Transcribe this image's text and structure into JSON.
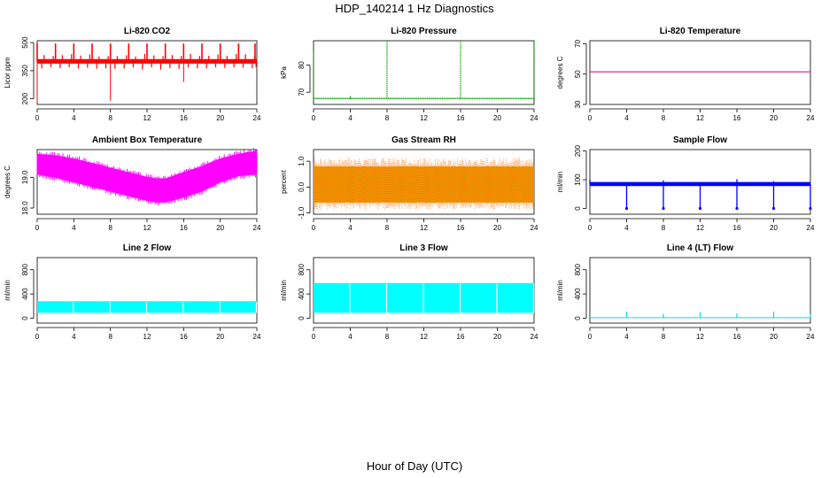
{
  "figure": {
    "title": "HDP_140214  1 Hz Diagnostics",
    "xlabel": "Hour of Day (UTC)"
  },
  "chart_data": [
    {
      "type": "line",
      "title": "Li-820 CO2",
      "ylabel": "Licor ppm",
      "color": "#ff0000",
      "x_ticks": [
        "0",
        "4",
        "8",
        "12",
        "16",
        "20",
        "24"
      ],
      "y_ticks": [
        "200",
        "350",
        "500"
      ],
      "y_tick_values": [
        200,
        350,
        500
      ],
      "xlim": [
        0,
        24
      ],
      "ylim": [
        170,
        510
      ],
      "baseline": 400,
      "band": [
        388,
        412
      ],
      "spikes_up": [
        0,
        2,
        4,
        6,
        8,
        10,
        12,
        14,
        16,
        18,
        20,
        22,
        23.8
      ],
      "spikes_up_value": 495,
      "spikes_down": [
        [
          0,
          180
        ],
        [
          8,
          190
        ],
        [
          16,
          290
        ],
        [
          23.9,
          370
        ]
      ]
    },
    {
      "type": "line",
      "title": "Li-820 Pressure",
      "ylabel": "kPa",
      "color": "#00b000",
      "x_ticks": [
        "0",
        "4",
        "8",
        "12",
        "16",
        "20",
        "24"
      ],
      "y_ticks": [
        "70",
        "80"
      ],
      "y_tick_values": [
        70,
        80
      ],
      "xlim": [
        0,
        24
      ],
      "ylim": [
        65.5,
        89
      ],
      "baseline": 67.7,
      "spikes_up": [
        [
          0,
          85
        ],
        [
          8,
          88.8
        ],
        [
          16,
          88.8
        ],
        [
          24,
          88.8
        ]
      ]
    },
    {
      "type": "line",
      "title": "Li-820 Temperature",
      "ylabel": "degrees C",
      "color": "#cc0066",
      "x_ticks": [
        "0",
        "4",
        "8",
        "12",
        "16",
        "20",
        "24"
      ],
      "y_ticks": [
        "30",
        "50",
        "70"
      ],
      "y_tick_values": [
        30,
        50,
        70
      ],
      "xlim": [
        0,
        24
      ],
      "ylim": [
        30,
        72
      ],
      "baseline": 51.5
    },
    {
      "type": "area",
      "title": "Ambient Box Temperature",
      "ylabel": "degrees C",
      "color": "#ff00ff",
      "x_ticks": [
        "0",
        "4",
        "8",
        "12",
        "16",
        "20",
        "24"
      ],
      "y_ticks": [
        "18.0",
        "19.0"
      ],
      "y_tick_values": [
        18.0,
        19.0
      ],
      "xlim": [
        0,
        24
      ],
      "ylim": [
        17.8,
        19.9
      ],
      "x": [
        0,
        2,
        4,
        6,
        8,
        10,
        12,
        13,
        14,
        16,
        18,
        20,
        22,
        24
      ],
      "upper": [
        19.75,
        19.7,
        19.6,
        19.45,
        19.3,
        19.15,
        19.0,
        18.95,
        18.95,
        19.15,
        19.35,
        19.6,
        19.75,
        19.85
      ],
      "lower": [
        19.1,
        19.0,
        18.85,
        18.7,
        18.55,
        18.4,
        18.25,
        18.2,
        18.2,
        18.35,
        18.55,
        18.85,
        19.05,
        19.1
      ]
    },
    {
      "type": "area",
      "title": "Gas Stream RH",
      "ylabel": "percent",
      "color": "#e8a000",
      "color2": "#ff6600",
      "x_ticks": [
        "0",
        "4",
        "8",
        "12",
        "16",
        "20",
        "24"
      ],
      "y_ticks": [
        "-1.0",
        "0.0",
        "1.0"
      ],
      "y_tick_values": [
        -1.0,
        0.0,
        1.0
      ],
      "xlim": [
        0,
        24
      ],
      "ylim": [
        -1.05,
        1.45
      ],
      "band": [
        -0.85,
        1.1
      ]
    },
    {
      "type": "line",
      "title": "Sample Flow",
      "ylabel": "ml/min",
      "color": "#0000ff",
      "x_ticks": [
        "0",
        "4",
        "8",
        "12",
        "16",
        "20",
        "24"
      ],
      "y_ticks": [
        "0",
        "100",
        "200"
      ],
      "y_tick_values": [
        0,
        100,
        200
      ],
      "xlim": [
        0,
        24
      ],
      "ylim": [
        -20,
        205
      ],
      "band": [
        78,
        92
      ],
      "dips": [
        4,
        8,
        12,
        16,
        20,
        24
      ],
      "dip_value": 0,
      "peaks": [
        [
          0,
          100
        ],
        [
          8,
          98
        ],
        [
          16,
          102
        ],
        [
          20,
          95
        ]
      ]
    },
    {
      "type": "area",
      "title": "Line 2 Flow",
      "ylabel": "ml/min",
      "color": "#00ffff",
      "x_ticks": [
        "0",
        "4",
        "8",
        "12",
        "16",
        "20",
        "24"
      ],
      "y_ticks": [
        "0",
        "400",
        "800"
      ],
      "y_tick_values": [
        0,
        400,
        800
      ],
      "xlim": [
        0,
        24
      ],
      "ylim": [
        -80,
        1000
      ],
      "band": [
        90,
        280
      ],
      "gaps": [
        4,
        8,
        12,
        16,
        20,
        24
      ]
    },
    {
      "type": "area",
      "title": "Line 3 Flow",
      "ylabel": "ml/min",
      "color": "#00ffff",
      "x_ticks": [
        "0",
        "4",
        "8",
        "12",
        "16",
        "20",
        "24"
      ],
      "y_ticks": [
        "0",
        "400",
        "800"
      ],
      "y_tick_values": [
        0,
        400,
        800
      ],
      "xlim": [
        0,
        24
      ],
      "ylim": [
        -80,
        1000
      ],
      "band": [
        90,
        580
      ],
      "gaps": [
        4,
        8,
        12,
        16,
        20,
        24
      ]
    },
    {
      "type": "line",
      "title": "Line 4 (LT) Flow",
      "ylabel": "ml/min",
      "color": "#00e0e0",
      "x_ticks": [
        "0",
        "4",
        "8",
        "12",
        "16",
        "20",
        "24"
      ],
      "y_ticks": [
        "0",
        "400",
        "800"
      ],
      "y_tick_values": [
        0,
        400,
        800
      ],
      "xlim": [
        0,
        24
      ],
      "ylim": [
        -80,
        1000
      ],
      "baseline": 10,
      "spikes_up": [
        [
          4,
          110
        ],
        [
          8,
          75
        ],
        [
          12,
          100
        ],
        [
          16,
          80
        ],
        [
          20,
          110
        ],
        [
          24,
          70
        ]
      ]
    }
  ]
}
